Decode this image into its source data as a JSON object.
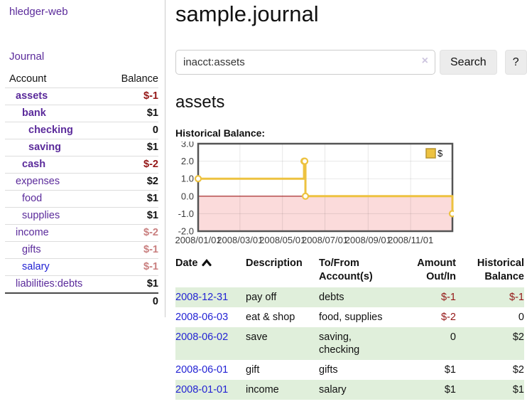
{
  "brand": "hledger-web",
  "nav": {
    "journal": "Journal"
  },
  "sidebar": {
    "columns": {
      "account": "Account",
      "balance": "Balance"
    },
    "accounts": [
      {
        "name": "assets",
        "indent": 0,
        "bold": true,
        "balance": "$-1",
        "neg": true
      },
      {
        "name": "bank",
        "indent": 1,
        "bold": true,
        "balance": "$1"
      },
      {
        "name": "checking",
        "indent": 2,
        "bold": true,
        "balance": "0"
      },
      {
        "name": "saving",
        "indent": 2,
        "bold": true,
        "balance": "$1"
      },
      {
        "name": "cash",
        "indent": 1,
        "bold": true,
        "balance": "$-2",
        "neg": true
      },
      {
        "name": "expenses",
        "indent": 0,
        "balance": "$2"
      },
      {
        "name": "food",
        "indent": 1,
        "balance": "$1"
      },
      {
        "name": "supplies",
        "indent": 1,
        "balance": "$1"
      },
      {
        "name": "income",
        "indent": 0,
        "balance": "$-2",
        "dim": true
      },
      {
        "name": "gifts",
        "indent": 1,
        "balance": "$-1",
        "dim": true
      },
      {
        "name": "salary",
        "indent": 1,
        "balance": "$-1",
        "dim": true,
        "blue": true
      },
      {
        "name": "liabilities:debts",
        "indent": 0,
        "balance": "$1"
      }
    ],
    "total": "0"
  },
  "header": {
    "title": "sample.journal"
  },
  "search": {
    "query": "inacct:assets",
    "clear_icon": "×",
    "button_label": "Search",
    "help_label": "?"
  },
  "account_page": {
    "heading": "assets",
    "chart_title": "Historical Balance:"
  },
  "chart_data": {
    "type": "line",
    "step": true,
    "title": "Historical Balance",
    "series": [
      {
        "name": "$",
        "color": "#edc240",
        "points": [
          [
            "2008-01-01",
            1
          ],
          [
            "2008-06-01",
            2
          ],
          [
            "2008-06-02",
            2
          ],
          [
            "2008-06-03",
            0
          ],
          [
            "2008-12-31",
            -1
          ]
        ]
      }
    ],
    "xlim": [
      "2008-01-01",
      "2008-12-31"
    ],
    "ylim": [
      -2,
      3
    ],
    "y_ticks": [
      3,
      2,
      1,
      0,
      -1,
      -2
    ],
    "x_ticks": [
      "2008/01/01",
      "2008/03/01",
      "2008/05/01",
      "2008/07/01",
      "2008/09/01",
      "2008/11/01"
    ],
    "legend_position": "top-right",
    "grid": true,
    "colors": {
      "negative_fill": "#fbdbdb",
      "zero_line": "#9e1a1a",
      "border": "#545454",
      "legend_border": "#b89530"
    }
  },
  "transactions": {
    "columns": [
      {
        "line1": "Date",
        "line2": "",
        "sort": "ascending"
      },
      {
        "line1": "Description",
        "line2": ""
      },
      {
        "line1": "To/From",
        "line2": "Account(s)"
      },
      {
        "line1": "Amount",
        "line2": "Out/In",
        "align": "right"
      },
      {
        "line1": "Historical",
        "line2": "Balance",
        "align": "right"
      }
    ],
    "rows": [
      {
        "date": "2008-12-31",
        "description": "pay off",
        "accounts": "debts",
        "amount": "$-1",
        "amount_neg": true,
        "balance": "$-1",
        "balance_neg": true
      },
      {
        "date": "2008-06-03",
        "description": "eat & shop",
        "accounts": "food, supplies",
        "amount": "$-2",
        "amount_neg": true,
        "balance": "0"
      },
      {
        "date": "2008-06-02",
        "description": "save",
        "accounts": "saving, checking",
        "amount": "0",
        "balance": "$2"
      },
      {
        "date": "2008-06-01",
        "description": "gift",
        "accounts": "gifts",
        "amount": "$1",
        "balance": "$2"
      },
      {
        "date": "2008-01-01",
        "description": "income",
        "accounts": "salary",
        "amount": "$1",
        "balance": "$1"
      }
    ]
  },
  "colors": {
    "link_purple": "#5b2b9b",
    "link_blue": "#2323d4",
    "negative": "#941616",
    "negative_dim": "#c97f7f",
    "row_green": "#e0efdb"
  }
}
